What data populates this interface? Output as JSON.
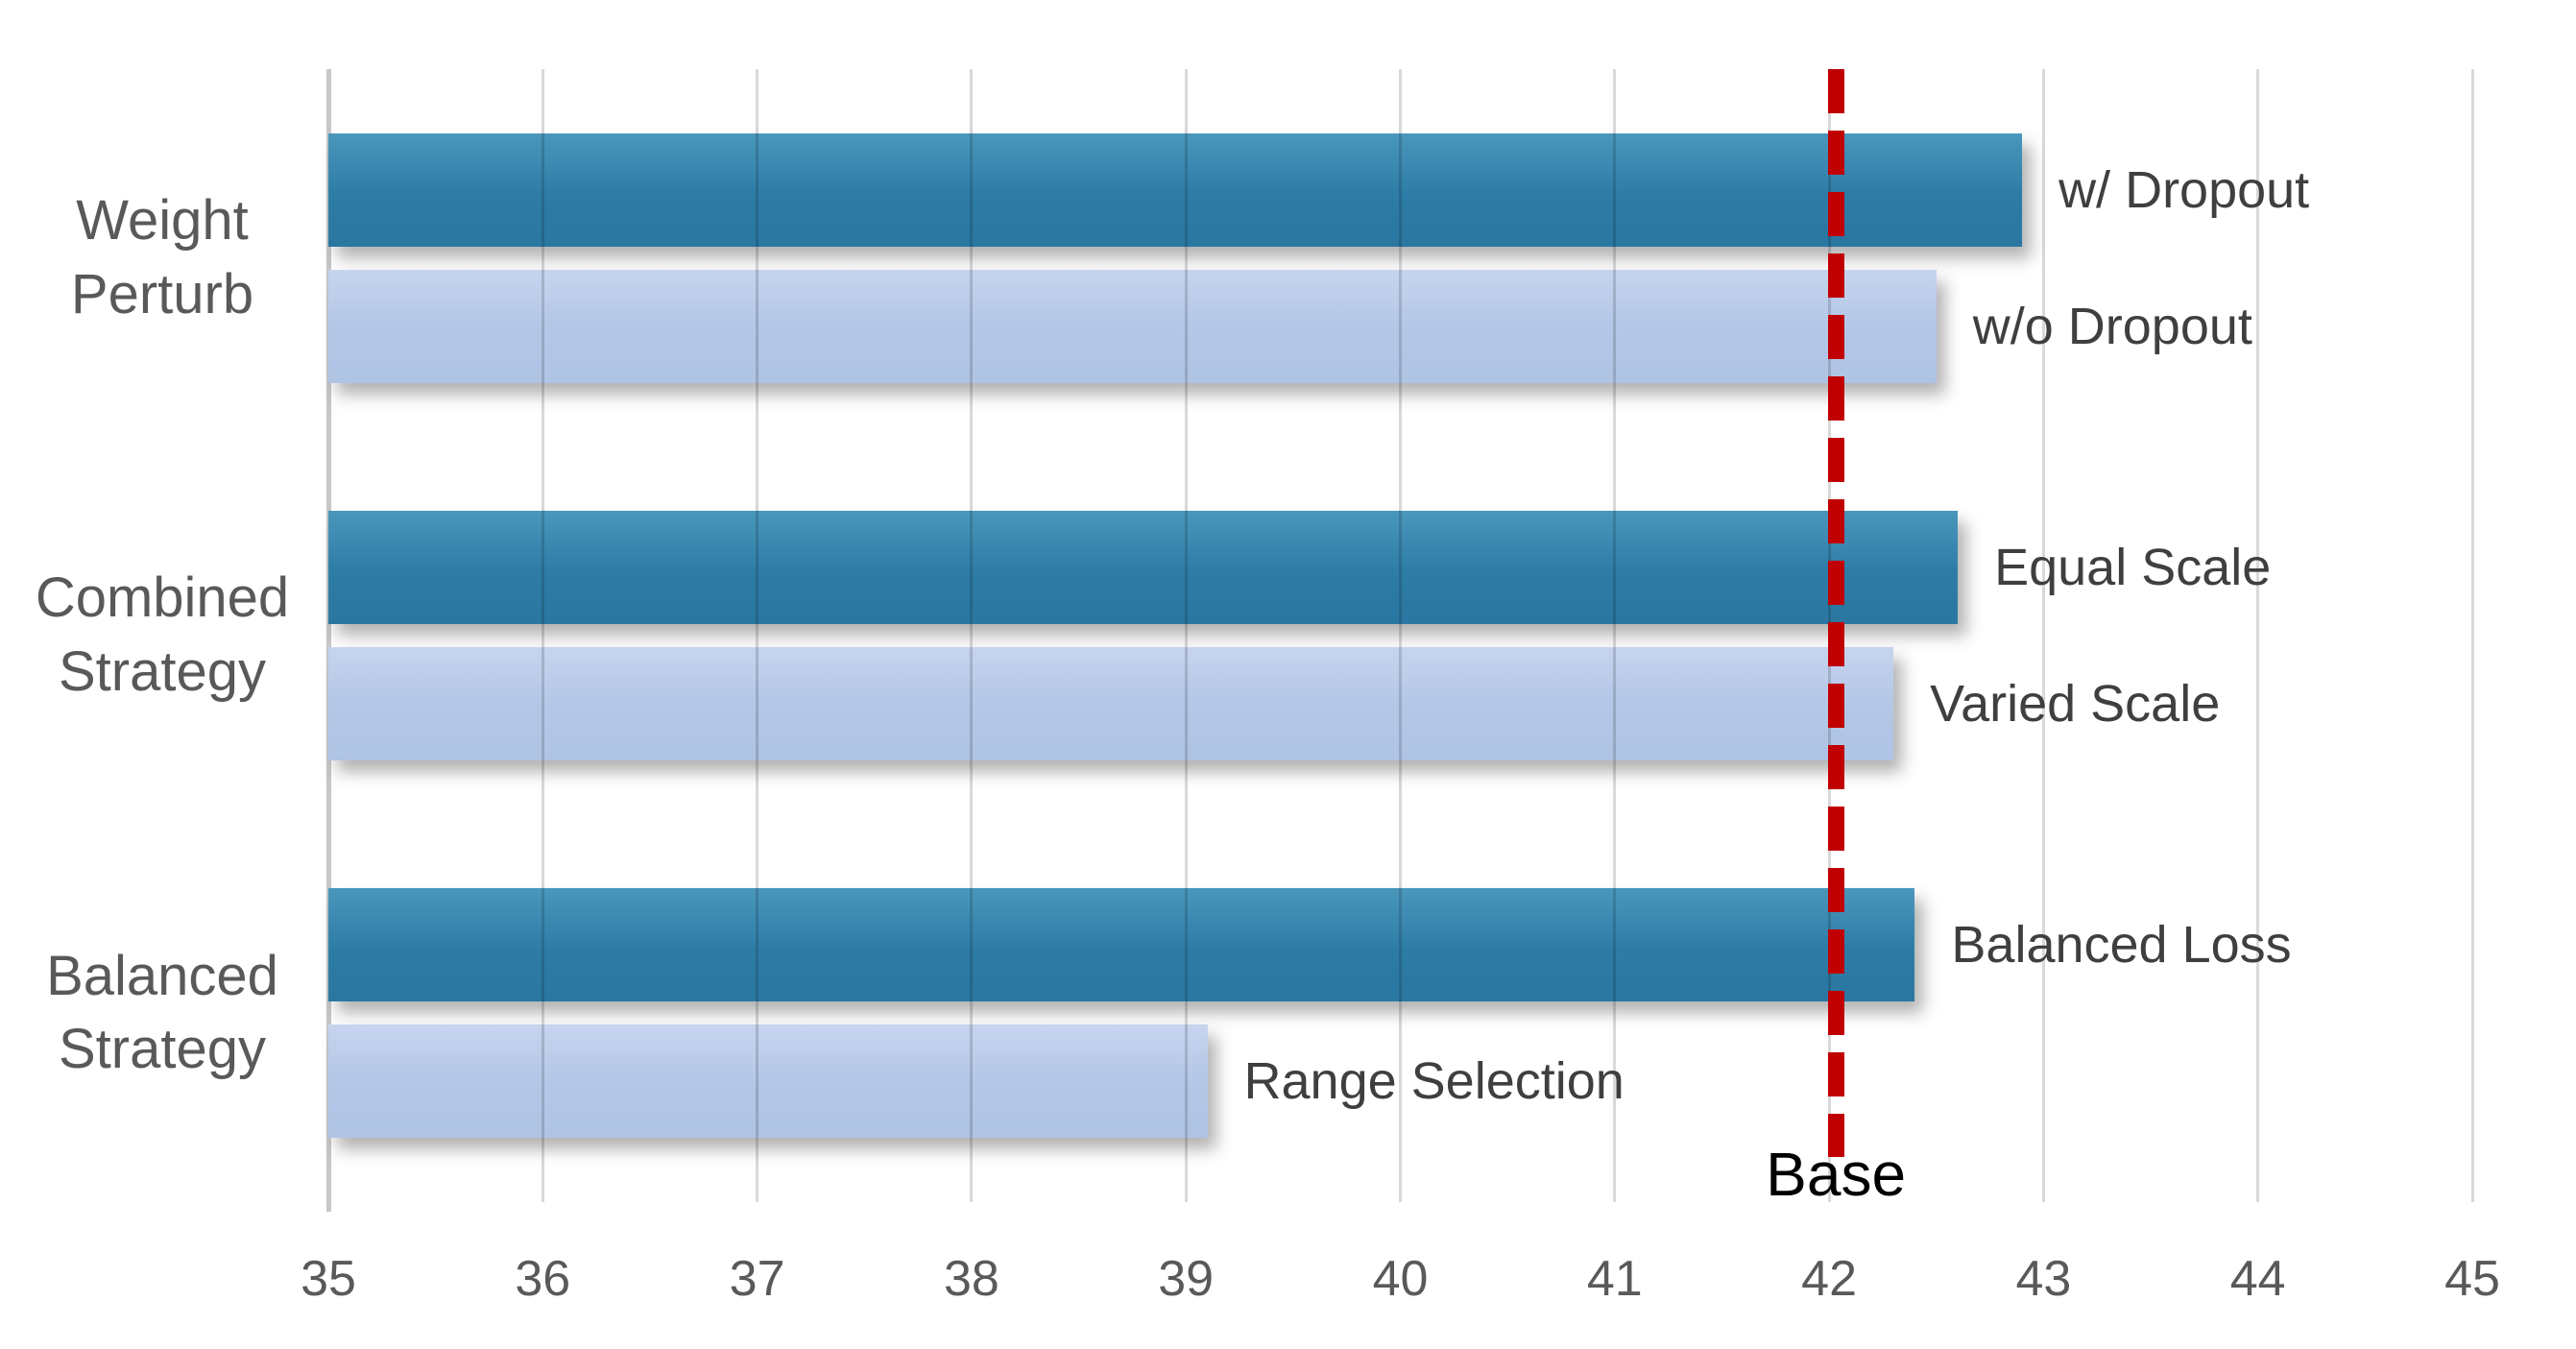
{
  "chart_data": {
    "type": "bar",
    "orientation": "horizontal",
    "title": "",
    "xlabel": "",
    "ylabel": "",
    "legend": "none",
    "grid": true,
    "x_axis": {
      "min": 35,
      "max": 45,
      "step": 1,
      "ticks": [
        35,
        36,
        37,
        38,
        39,
        40,
        41,
        42,
        43,
        44,
        45
      ]
    },
    "groups": [
      {
        "category": "Weight\nPerturb",
        "bars": [
          {
            "label": "w/ Dropout",
            "series": "primary",
            "value": 42.9
          },
          {
            "label": "w/o Dropout",
            "series": "secondary",
            "value": 42.5
          }
        ]
      },
      {
        "category": "Combined\nStrategy",
        "bars": [
          {
            "label": "Equal Scale",
            "series": "primary",
            "value": 42.6
          },
          {
            "label": "Varied Scale",
            "series": "secondary",
            "value": 42.3
          }
        ]
      },
      {
        "category": "Balanced\nStrategy",
        "bars": [
          {
            "label": "Balanced Loss",
            "series": "primary",
            "value": 42.4
          },
          {
            "label": "Range Selection",
            "series": "secondary",
            "value": 39.1
          }
        ]
      }
    ],
    "reference_line": {
      "label": "Base",
      "value": 42,
      "style": "dashed",
      "color": "#C00000"
    },
    "palette": {
      "primary": "#2D7CA6",
      "secondary": "#B4C7E7",
      "gridline": "#D9D9D9",
      "axis_line": "#C7C7C7",
      "category_text": "#595959",
      "tick_text": "#595959",
      "bar_label_text": "#3F3F3F",
      "reference_text": "#000000"
    }
  }
}
